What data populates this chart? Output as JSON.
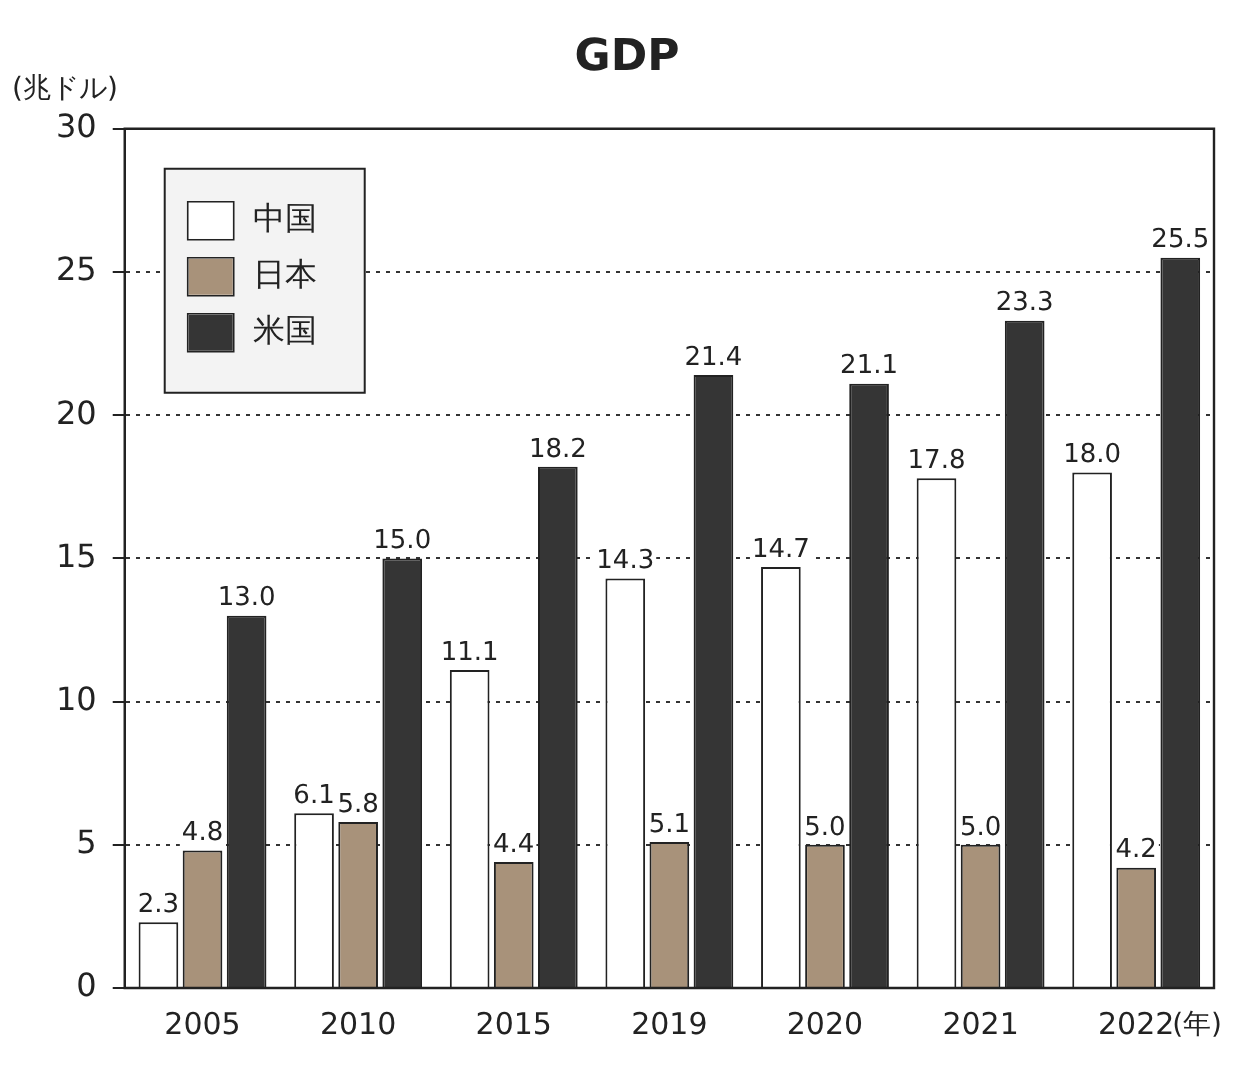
{
  "chart_data": {
    "type": "bar",
    "title": "GDP",
    "ylabel": "(兆ドル)",
    "xlabel": "(年)",
    "categories": [
      "2005",
      "2010",
      "2015",
      "2019",
      "2020",
      "2021",
      "2022"
    ],
    "series": [
      {
        "name": "中国",
        "color": "#ffffff",
        "values": [
          2.3,
          6.1,
          11.1,
          14.3,
          14.7,
          17.8,
          18.0
        ],
        "value_labels": [
          "2.3",
          "6.1",
          "11.1",
          "14.3",
          "14.7",
          "17.8",
          "18.0"
        ]
      },
      {
        "name": "日本",
        "color": "#a8927a",
        "values": [
          4.8,
          5.8,
          4.4,
          5.1,
          5.0,
          5.0,
          4.2
        ],
        "value_labels": [
          "4.8",
          "5.8",
          "4.4",
          "5.1",
          "5.0",
          "5.0",
          "4.2"
        ]
      },
      {
        "name": "米国",
        "color": "#353535",
        "values": [
          13.0,
          15.0,
          18.2,
          21.4,
          21.1,
          23.3,
          25.5
        ],
        "value_labels": [
          "13.0",
          "15.0",
          "18.2",
          "21.4",
          "21.1",
          "23.3",
          "25.5"
        ]
      }
    ],
    "ylim": [
      0,
      30
    ],
    "yticks": [
      0,
      5,
      10,
      15,
      20,
      25,
      30
    ],
    "grid": "y",
    "legend": "top left"
  }
}
